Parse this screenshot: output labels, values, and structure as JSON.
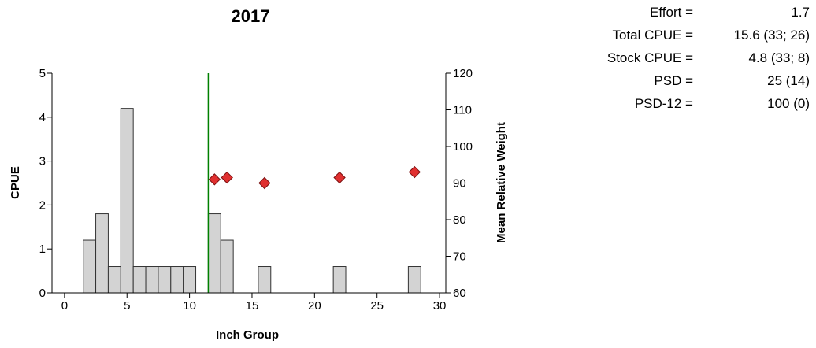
{
  "chart_data": {
    "type": "bar",
    "title": "2017",
    "xlabel": "Inch Group",
    "ylabel": "CPUE",
    "y2label": "Mean Relative Weight",
    "xlim": [
      -1,
      30.5
    ],
    "ylim": [
      0,
      5
    ],
    "y2lim": [
      60,
      120
    ],
    "xticks": [
      "0",
      "5",
      "10",
      "15",
      "20",
      "25",
      "30"
    ],
    "yticks": [
      "0",
      "1",
      "2",
      "3",
      "4",
      "5"
    ],
    "y2ticks": [
      "60",
      "70",
      "80",
      "90",
      "100",
      "110",
      "120"
    ],
    "bars": {
      "name": "CPUE",
      "x": [
        2,
        3,
        4,
        5,
        6,
        7,
        8,
        9,
        10,
        12,
        13,
        16,
        22,
        28
      ],
      "values": [
        1.2,
        1.8,
        0.6,
        4.2,
        0.6,
        0.6,
        0.6,
        0.6,
        0.6,
        1.8,
        1.2,
        0.6,
        0.6,
        0.6
      ],
      "color": "#d3d3d3"
    },
    "points": {
      "name": "Mean Relative Weight",
      "x": [
        12,
        13,
        16,
        22,
        28
      ],
      "values": [
        91,
        91.5,
        90,
        91.5,
        93
      ],
      "color": "#e03030"
    },
    "reference_line": {
      "x": 11.5,
      "color": "#008000"
    }
  },
  "stats": [
    {
      "label": "Effort =",
      "value": "1.7"
    },
    {
      "label": "Total CPUE =",
      "value": "15.6 (33; 26)"
    },
    {
      "label": "Stock CPUE =",
      "value": "4.8 (33; 8)"
    },
    {
      "label": "PSD =",
      "value": "25 (14)"
    },
    {
      "label": "PSD-12 =",
      "value": "100 (0)"
    }
  ]
}
